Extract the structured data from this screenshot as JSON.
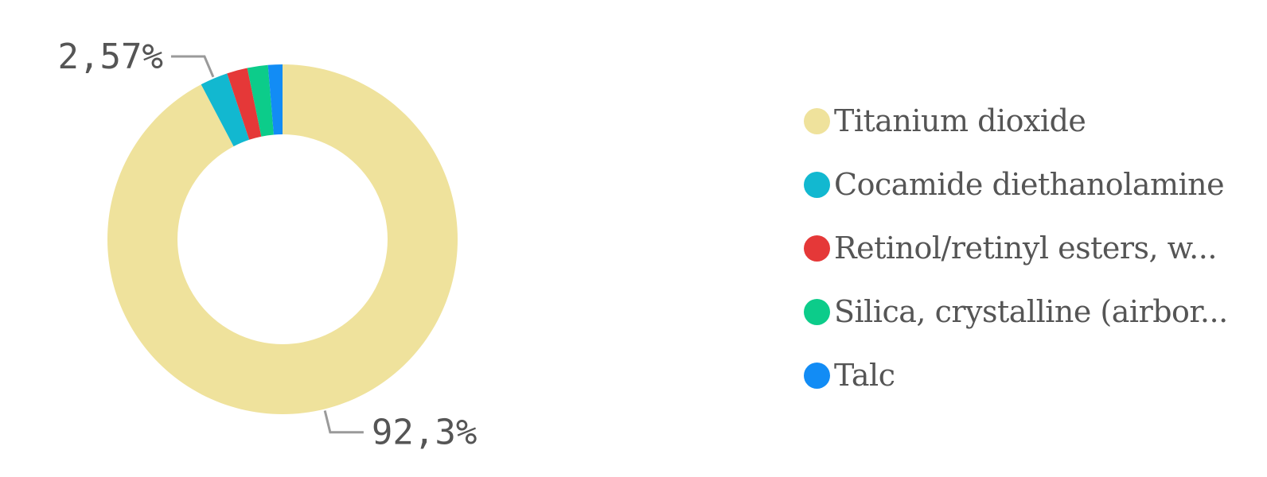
{
  "chart_data": {
    "type": "pie",
    "donut": true,
    "title": "",
    "legend_position": "right",
    "categories": [
      "Titanium dioxide",
      "Cocamide diethanolamine",
      "Retinol/retinyl esters, w...",
      "Silica, crystalline (airbor...",
      "Talc"
    ],
    "values": [
      92.3,
      2.57,
      1.9,
      1.9,
      1.33
    ],
    "colors": [
      "#EFE29C",
      "#12B8D0",
      "#E53838",
      "#0CCC8A",
      "#128CF5"
    ],
    "data_labels": [
      {
        "category": "Titanium dioxide",
        "text": "92,3%"
      },
      {
        "category": "Cocamide diethanolamine",
        "text": "2,57%"
      }
    ]
  }
}
